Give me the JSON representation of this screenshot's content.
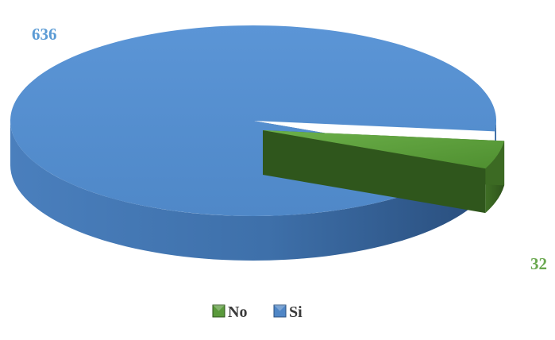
{
  "chart_data": {
    "type": "pie",
    "style": "3d-exploded",
    "title": "",
    "categories": [
      "No",
      "Si"
    ],
    "values": [
      32,
      636
    ],
    "colors": {
      "No": "#5a9a3c",
      "Si": "#4f86c6"
    },
    "data_label_colors": {
      "No": "#6aa84f",
      "Si": "#5b9bd5"
    },
    "legend": {
      "position": "bottom",
      "entries": [
        "No",
        "Si"
      ]
    }
  }
}
